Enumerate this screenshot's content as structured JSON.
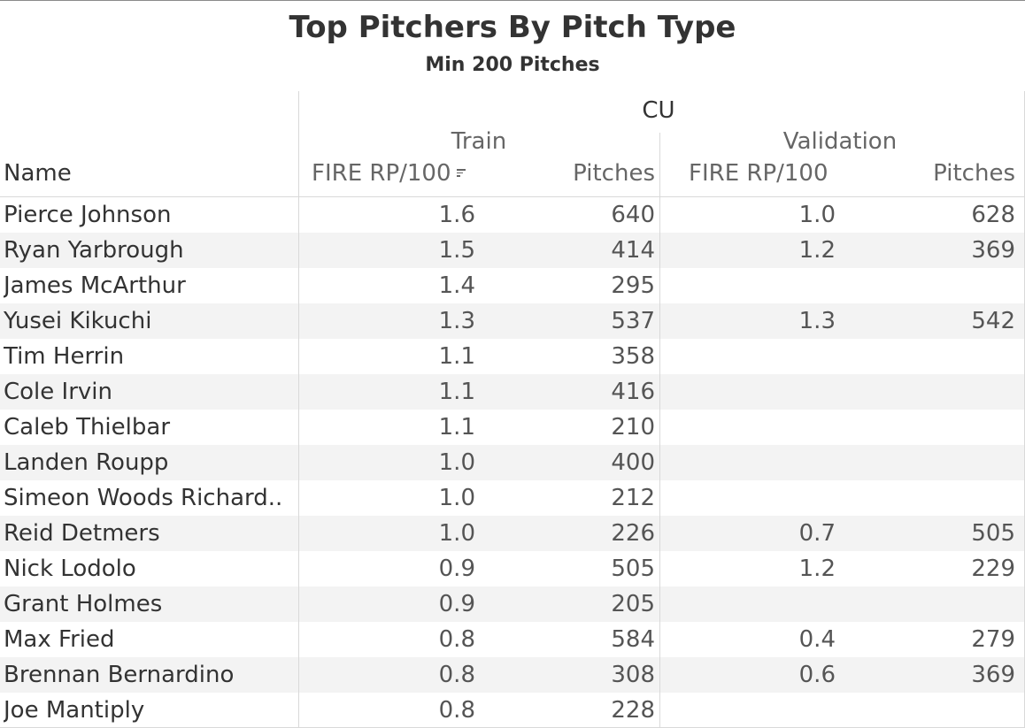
{
  "chart_data": {
    "type": "table",
    "title": "Top Pitchers By Pitch Type",
    "subtitle": "Min 200 Pitches",
    "pitch_type": "CU",
    "groups": [
      "Train",
      "Validation"
    ],
    "columns": {
      "name": "Name",
      "train_fire": "FIRE RP/100",
      "train_pitches": "Pitches",
      "val_fire": "FIRE RP/100",
      "val_pitches": "Pitches"
    },
    "sorted_by": "Train FIRE RP/100 descending",
    "rows": [
      {
        "name": "Pierce Johnson",
        "train_fire": "1.6",
        "train_pitches": "640",
        "val_fire": "1.0",
        "val_pitches": "628"
      },
      {
        "name": "Ryan Yarbrough",
        "train_fire": "1.5",
        "train_pitches": "414",
        "val_fire": "1.2",
        "val_pitches": "369"
      },
      {
        "name": "James McArthur",
        "train_fire": "1.4",
        "train_pitches": "295",
        "val_fire": "",
        "val_pitches": ""
      },
      {
        "name": "Yusei Kikuchi",
        "train_fire": "1.3",
        "train_pitches": "537",
        "val_fire": "1.3",
        "val_pitches": "542"
      },
      {
        "name": "Tim Herrin",
        "train_fire": "1.1",
        "train_pitches": "358",
        "val_fire": "",
        "val_pitches": ""
      },
      {
        "name": "Cole Irvin",
        "train_fire": "1.1",
        "train_pitches": "416",
        "val_fire": "",
        "val_pitches": ""
      },
      {
        "name": "Caleb Thielbar",
        "train_fire": "1.1",
        "train_pitches": "210",
        "val_fire": "",
        "val_pitches": ""
      },
      {
        "name": "Landen Roupp",
        "train_fire": "1.0",
        "train_pitches": "400",
        "val_fire": "",
        "val_pitches": ""
      },
      {
        "name": "Simeon Woods Richard..",
        "train_fire": "1.0",
        "train_pitches": "212",
        "val_fire": "",
        "val_pitches": ""
      },
      {
        "name": "Reid Detmers",
        "train_fire": "1.0",
        "train_pitches": "226",
        "val_fire": "0.7",
        "val_pitches": "505"
      },
      {
        "name": "Nick Lodolo",
        "train_fire": "0.9",
        "train_pitches": "505",
        "val_fire": "1.2",
        "val_pitches": "229"
      },
      {
        "name": "Grant Holmes",
        "train_fire": "0.9",
        "train_pitches": "205",
        "val_fire": "",
        "val_pitches": ""
      },
      {
        "name": "Max Fried",
        "train_fire": "0.8",
        "train_pitches": "584",
        "val_fire": "0.4",
        "val_pitches": "279"
      },
      {
        "name": "Brennan Bernardino",
        "train_fire": "0.8",
        "train_pitches": "308",
        "val_fire": "0.6",
        "val_pitches": "369"
      },
      {
        "name": "Joe Mantiply",
        "train_fire": "0.8",
        "train_pitches": "228",
        "val_fire": "",
        "val_pitches": ""
      }
    ]
  },
  "icons": {
    "sort_indicator": "sort-descending-icon"
  },
  "colors": {
    "row_band": "#f3f3f3",
    "divider": "#d9d9d9",
    "text": "#333333",
    "muted": "#666666"
  }
}
